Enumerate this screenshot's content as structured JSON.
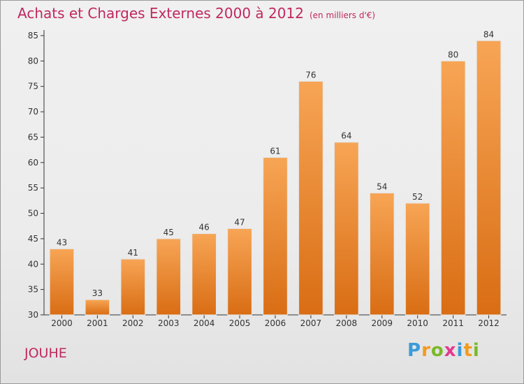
{
  "title": "Achats et Charges Externes 2000 à 2012",
  "unit_note": "(en milliers d'€)",
  "place": "JOUHE",
  "logo": {
    "letters": [
      "P",
      "r",
      "o",
      "x",
      "i",
      "t",
      "i"
    ],
    "colors": [
      "#3a9bd9",
      "#f29b1d",
      "#7ab929",
      "#e33a8e",
      "#3a9bd9",
      "#f29b1d",
      "#7ab929"
    ]
  },
  "colors": {
    "bar_light": "#f7a555",
    "bar_dark": "#d96d14",
    "title": "#c0285e"
  },
  "chart_data": {
    "type": "bar",
    "title": "Achats et Charges Externes 2000 à 2012",
    "categories": [
      "2000",
      "2001",
      "2002",
      "2003",
      "2004",
      "2005",
      "2006",
      "2007",
      "2008",
      "2009",
      "2010",
      "2011",
      "2012"
    ],
    "values": [
      43,
      33,
      41,
      45,
      46,
      47,
      61,
      76,
      64,
      54,
      52,
      80,
      84
    ],
    "ylim": [
      30,
      85
    ],
    "yticks": [
      30,
      35,
      40,
      45,
      50,
      55,
      60,
      65,
      70,
      75,
      80,
      85
    ],
    "grid": false,
    "data_labels": true
  }
}
